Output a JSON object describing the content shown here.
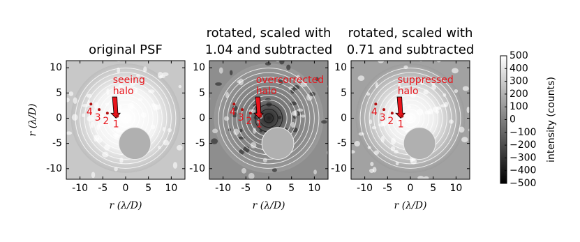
{
  "chart_data": [
    {
      "type": "image",
      "title": [
        "original PSF"
      ],
      "xlabel": "r (λ/D)",
      "ylabel": "r (λ/D)",
      "xlim": [
        -13,
        13
      ],
      "ylim": [
        -12.1,
        11.4
      ],
      "xticks": [
        -10,
        -5,
        0,
        5,
        10
      ],
      "yticks": [
        -10,
        -5,
        0,
        5,
        10
      ],
      "annotation": [
        "seeing",
        "halo"
      ],
      "point_labels": [
        "1",
        "2",
        "3",
        "4"
      ]
    },
    {
      "type": "image",
      "title": [
        "rotated, scaled with",
        "1.04 and subtracted"
      ],
      "xlabel": "r (λ/D)",
      "xlim": [
        -13,
        13
      ],
      "ylim": [
        -12.1,
        11.4
      ],
      "xticks": [
        -10,
        -5,
        0,
        5,
        10
      ],
      "yticks": [
        -10,
        -5,
        0,
        5,
        10
      ],
      "annotation": [
        "overcorrected",
        "halo"
      ],
      "point_labels": [
        "1",
        "2",
        "3",
        "4"
      ]
    },
    {
      "type": "image",
      "title": [
        "rotated, scaled with",
        "0.71 and subtracted"
      ],
      "xlabel": "r (λ/D)",
      "xlim": [
        -13,
        13
      ],
      "ylim": [
        -12.1,
        11.4
      ],
      "xticks": [
        -10,
        -5,
        0,
        5,
        10
      ],
      "yticks": [
        -10,
        -5,
        0,
        5,
        10
      ],
      "annotation": [
        "suppressed",
        "halo"
      ],
      "point_labels": [
        "1",
        "2",
        "3",
        "4"
      ]
    },
    {
      "type": "colorbar",
      "label": "intensity (counts)",
      "ylim": [
        -500,
        500
      ],
      "yticks": [
        {
          "value": -500,
          "label": "−500"
        },
        {
          "value": -400,
          "label": "−400"
        },
        {
          "value": -300,
          "label": "−300"
        },
        {
          "value": -200,
          "label": "−200"
        },
        {
          "value": -100,
          "label": "−100"
        },
        0,
        100,
        200,
        300,
        400,
        500
      ]
    }
  ]
}
